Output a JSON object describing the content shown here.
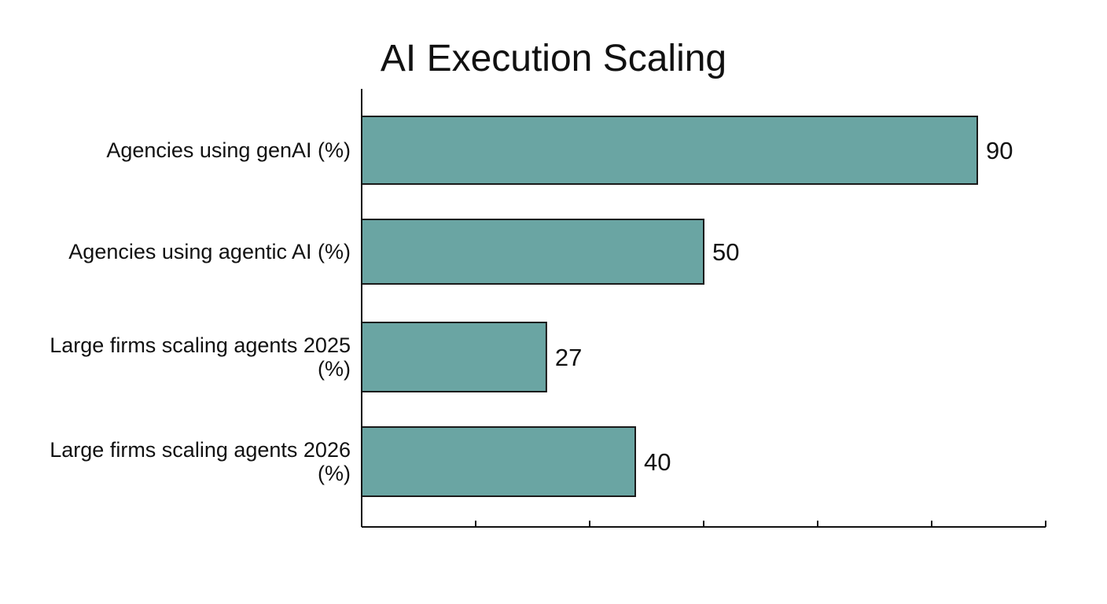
{
  "chart_data": {
    "type": "bar",
    "orientation": "horizontal",
    "title": "AI Execution Scaling",
    "categories": [
      [
        "Agencies using genAI (%)"
      ],
      [
        "Agencies using agentic AI (%)"
      ],
      [
        "Large firms scaling agents 2025",
        "(%)"
      ],
      [
        "Large firms scaling agents 2026",
        "(%)"
      ]
    ],
    "values": [
      90,
      50,
      27,
      40
    ],
    "value_labels": [
      "90",
      "50",
      "27",
      "40"
    ],
    "xlim": [
      0,
      100
    ],
    "x_ticks_count": 6,
    "tick_labels_shown": false,
    "grid": false,
    "legend": "none",
    "colors": {
      "bar": "#6aa5a3",
      "bar_edge": "#1a1a1a",
      "text": "#111111"
    }
  }
}
